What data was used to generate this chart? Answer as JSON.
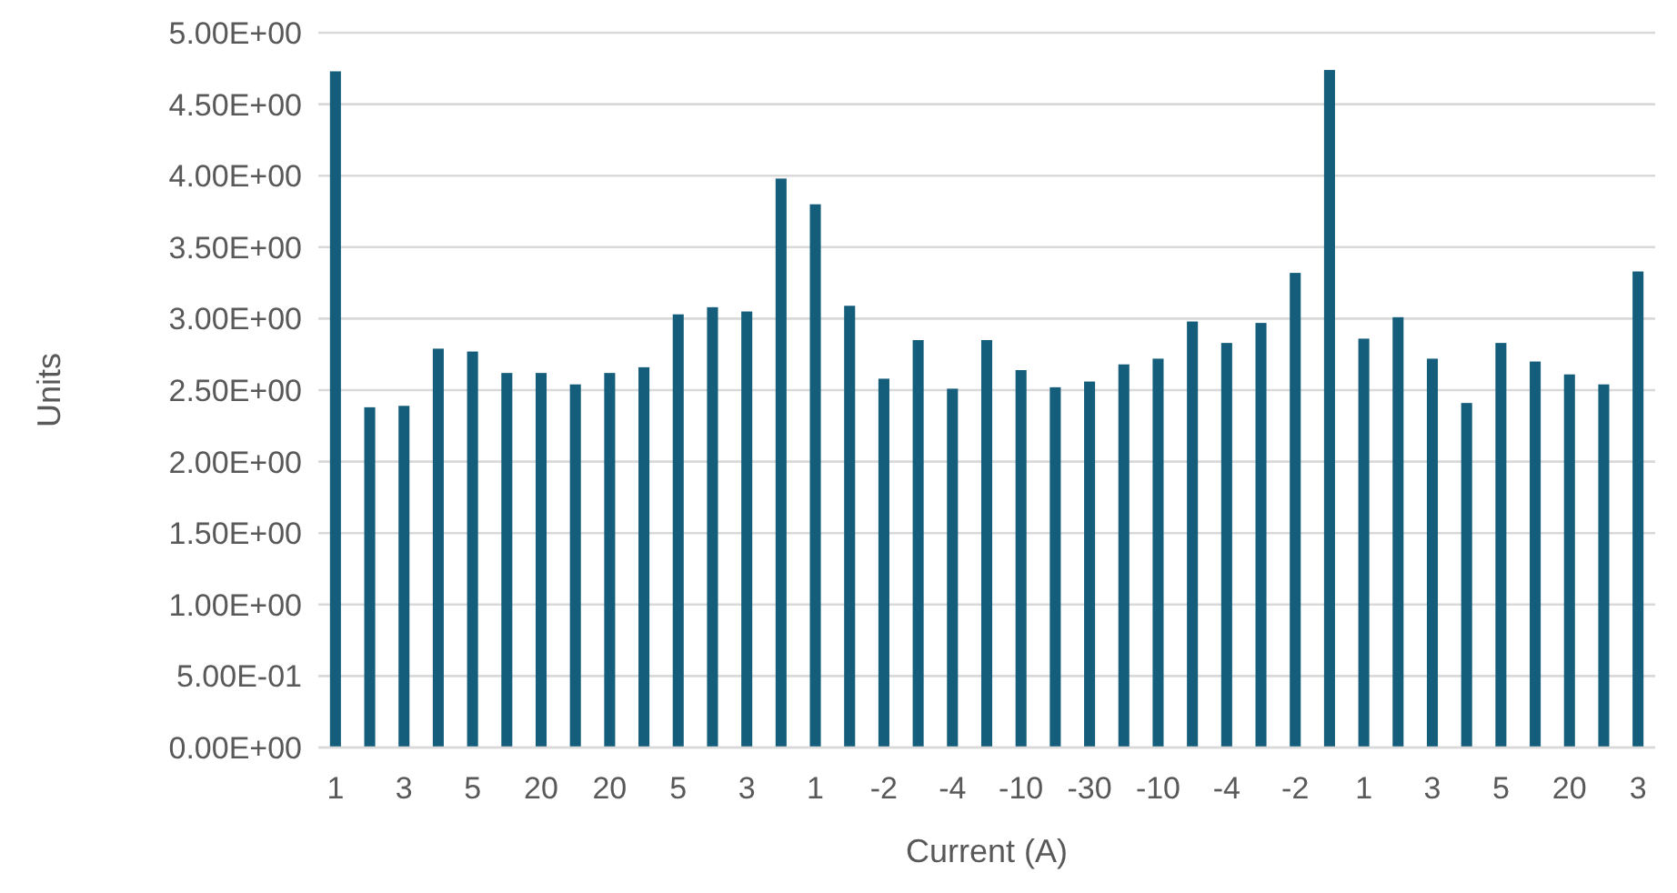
{
  "chart_data": {
    "type": "bar",
    "xlabel": "Current (A)",
    "ylabel": "Units",
    "categories": [
      "1",
      null,
      "3",
      null,
      "5",
      null,
      "20",
      null,
      "20",
      null,
      "5",
      null,
      "3",
      null,
      "1",
      null,
      "-2",
      null,
      "-4",
      null,
      "-10",
      null,
      "-30",
      null,
      "-10",
      null,
      "-4",
      null,
      "-2",
      null,
      "1",
      null,
      "3",
      null,
      "5",
      null,
      "20",
      null,
      "3"
    ],
    "values": [
      4.73,
      2.38,
      2.39,
      2.79,
      2.77,
      2.62,
      2.62,
      2.54,
      2.62,
      2.66,
      3.03,
      3.08,
      3.05,
      3.98,
      3.8,
      3.09,
      2.58,
      2.85,
      2.51,
      2.85,
      2.64,
      2.52,
      2.56,
      2.68,
      2.72,
      2.98,
      2.83,
      2.97,
      3.32,
      4.74,
      2.86,
      3.01,
      2.72,
      2.41,
      2.83,
      2.7,
      2.61,
      2.54,
      3.33
    ],
    "color": "#145e7b",
    "ylim": [
      0,
      5
    ],
    "yticks": [
      {
        "value": 0,
        "label": "0.00E+00"
      },
      {
        "value": 0.5,
        "label": "5.00E-01"
      },
      {
        "value": 1,
        "label": "1.00E+00"
      },
      {
        "value": 1.5,
        "label": "1.50E+00"
      },
      {
        "value": 2,
        "label": "2.00E+00"
      },
      {
        "value": 2.5,
        "label": "2.50E+00"
      },
      {
        "value": 3,
        "label": "3.00E+00"
      },
      {
        "value": 3.5,
        "label": "3.50E+00"
      },
      {
        "value": 4,
        "label": "4.00E+00"
      },
      {
        "value": 4.5,
        "label": "4.50E+00"
      },
      {
        "value": 5,
        "label": "5.00E+00"
      }
    ],
    "grid": "y"
  }
}
